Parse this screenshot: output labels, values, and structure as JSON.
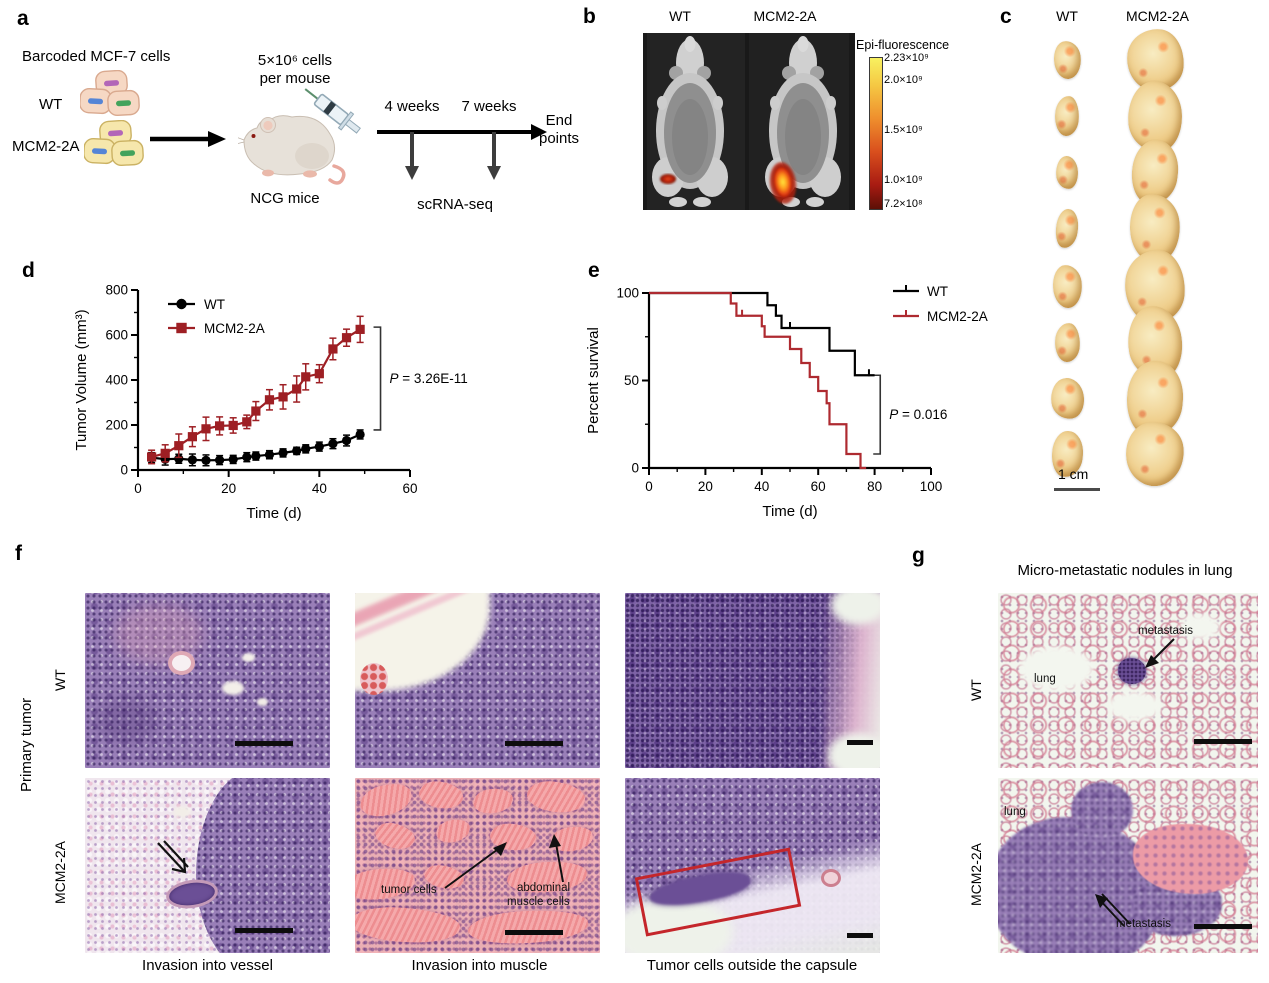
{
  "letters": {
    "a": "a",
    "b": "b",
    "c": "c",
    "d": "d",
    "e": "e",
    "f": "f",
    "g": "g"
  },
  "panel_a": {
    "title": "Barcoded MCF-7 cells",
    "wt_label": "WT",
    "mcm_label": "MCM2-2A",
    "cells_per_mouse_line1": "5×10⁶ cells",
    "cells_per_mouse_line2": "per mouse",
    "mouse_label": "NCG mice",
    "week4": "4 weeks",
    "week7": "7 weeks",
    "scrna": "scRNA-seq",
    "end_line1": "End",
    "end_line2": "points",
    "barcode_colors": [
      "#b266b8",
      "#5585d6",
      "#43a35c"
    ],
    "wt_cell_color": "#f6d8c4",
    "mcm_cell_color": "#f6e7ac"
  },
  "panel_b": {
    "col_wt": "WT",
    "col_mcm": "MCM2-2A",
    "colorbar_title": "Epi-fluorescence",
    "colorbar_ticks": [
      "2.23×10⁹",
      "2.0×10⁹",
      "1.5×10⁹",
      "1.0×10⁹",
      "7.2×10⁸"
    ]
  },
  "panel_c": {
    "col_wt": "WT",
    "col_mcm": "MCM2-2A",
    "scalebar": "1 cm",
    "rows": 8
  },
  "panel_f": {
    "group_label": "Primary tumor",
    "row_wt": "WT",
    "row_mcm": "MCM2-2A",
    "captions": [
      "Invasion into vessel",
      "Invasion into muscle",
      "Tumor cells outside the capsule"
    ],
    "ann_tumor_cells": "tumor cells",
    "ann_muscle_line1": "abdominal",
    "ann_muscle_line2": "muscle cells"
  },
  "panel_g": {
    "title": "Micro-metastatic nodules in lung",
    "row_wt": "WT",
    "row_mcm": "MCM2-2A",
    "wt_lung": "lung",
    "wt_met": "metastasis",
    "mcm_lung": "lung",
    "mcm_met": "metastasis"
  },
  "chart_data": [
    {
      "panel": "d",
      "type": "line",
      "title": "",
      "xlabel": "Time (d)",
      "ylabel": "Tumor Volume (mm³)",
      "xlim": [
        0,
        60
      ],
      "ylim": [
        0,
        800
      ],
      "xticks": [
        0,
        20,
        40,
        60
      ],
      "yticks": [
        0,
        200,
        400,
        600,
        800
      ],
      "x_minor_step": 10,
      "y_minor_step": 100,
      "x": [
        3,
        6,
        9,
        12,
        15,
        18,
        21,
        24,
        26,
        29,
        32,
        35,
        37,
        40,
        43,
        46,
        49
      ],
      "series": [
        {
          "name": "WT",
          "color": "#000000",
          "marker": "circle",
          "values": [
            55,
            48,
            50,
            45,
            43,
            44,
            47,
            57,
            62,
            68,
            76,
            85,
            94,
            104,
            117,
            131,
            158
          ],
          "errors": [
            22,
            26,
            20,
            26,
            24,
            20,
            18,
            20,
            18,
            18,
            18,
            16,
            18,
            20,
            22,
            24,
            20
          ]
        },
        {
          "name": "MCM2-2A",
          "color": "#9e1f24",
          "marker": "square",
          "values": [
            58,
            74,
            108,
            148,
            183,
            196,
            198,
            214,
            262,
            312,
            325,
            360,
            414,
            428,
            538,
            588,
            625
          ],
          "errors": [
            30,
            38,
            52,
            44,
            52,
            40,
            34,
            30,
            42,
            45,
            54,
            58,
            58,
            40,
            48,
            38,
            58
          ]
        }
      ],
      "p_label": "P = 3.26E-11",
      "bracket": {
        "x": 53.5,
        "y1": 635,
        "y2": 178
      },
      "legend_position": "top-left"
    },
    {
      "panel": "e",
      "type": "step",
      "title": "",
      "xlabel": "Time (d)",
      "ylabel": "Percent survival",
      "xlim": [
        0,
        100
      ],
      "ylim": [
        0,
        100
      ],
      "xticks": [
        0,
        20,
        40,
        60,
        80,
        100
      ],
      "yticks": [
        0,
        50,
        100
      ],
      "x_minor_step": 10,
      "y_minor_step": 25,
      "series": [
        {
          "name": "WT",
          "color": "#000000",
          "points": [
            [
              0,
              100
            ],
            [
              42,
              100
            ],
            [
              42,
              93
            ],
            [
              45,
              93
            ],
            [
              45,
              87
            ],
            [
              47,
              87
            ],
            [
              47,
              80
            ],
            [
              64,
              80
            ],
            [
              64,
              67
            ],
            [
              73,
              67
            ],
            [
              73,
              53
            ],
            [
              80,
              53
            ]
          ],
          "censors": [
            [
              50,
              80
            ],
            [
              78,
              53
            ]
          ]
        },
        {
          "name": "MCM2-2A",
          "color": "#ae2a30",
          "points": [
            [
              0,
              100
            ],
            [
              29,
              100
            ],
            [
              29,
              94
            ],
            [
              31,
              94
            ],
            [
              31,
              87
            ],
            [
              40,
              87
            ],
            [
              40,
              81
            ],
            [
              41,
              81
            ],
            [
              41,
              75
            ],
            [
              50,
              75
            ],
            [
              50,
              68
            ],
            [
              54,
              68
            ],
            [
              54,
              60
            ],
            [
              57,
              60
            ],
            [
              57,
              52
            ],
            [
              60,
              52
            ],
            [
              60,
              44
            ],
            [
              63,
              44
            ],
            [
              63,
              37
            ],
            [
              64,
              37
            ],
            [
              64,
              25
            ],
            [
              70,
              25
            ],
            [
              70,
              8
            ],
            [
              75,
              8
            ],
            [
              75,
              0
            ],
            [
              77,
              0
            ]
          ],
          "censors": [
            [
              33,
              87
            ]
          ]
        }
      ],
      "p_label": "P = 0.016",
      "bracket": {
        "x": 82,
        "y1": 53,
        "y2": 8
      },
      "legend_position": "top-right"
    }
  ]
}
